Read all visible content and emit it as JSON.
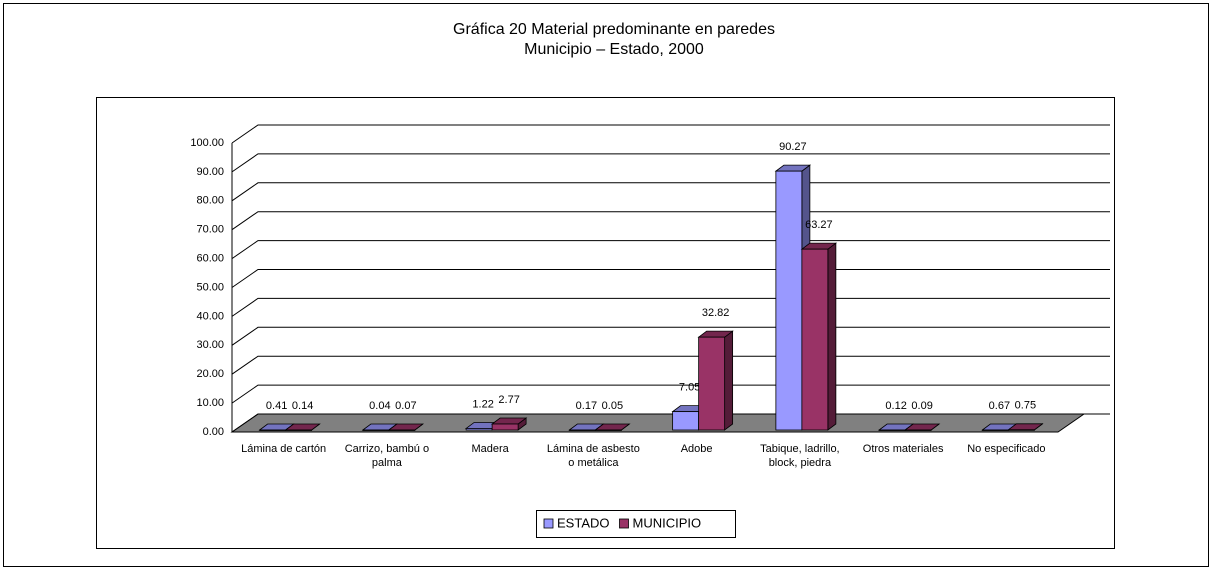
{
  "chart_data": {
    "type": "bar3d",
    "title": "Gráfica 20 Material predominante en paredes",
    "subtitle": "Municipio – Estado, 2000",
    "categories": [
      "Lámina de cartón",
      "Carrizo, bambú o palma",
      "Madera",
      "Lámina de asbesto o metálica",
      "Adobe",
      "Tabique, ladrillo, block, piedra",
      "Otros materiales",
      "No especificado"
    ],
    "series": [
      {
        "name": "ESTADO",
        "color": "#9999ff",
        "values": [
          0.41,
          0.04,
          1.22,
          0.17,
          7.05,
          90.27,
          0.12,
          0.67
        ]
      },
      {
        "name": "MUNICIPIO",
        "color": "#993366",
        "values": [
          0.14,
          0.07,
          2.77,
          0.05,
          32.82,
          63.27,
          0.09,
          0.75
        ]
      }
    ],
    "ylim": [
      0,
      100
    ],
    "yticks": [
      {
        "value": 0,
        "label": "0.00"
      },
      {
        "value": 10,
        "label": "10.00"
      },
      {
        "value": 20,
        "label": "20.00"
      },
      {
        "value": 30,
        "label": "30.00"
      },
      {
        "value": 40,
        "label": "40.00"
      },
      {
        "value": 50,
        "label": "50.00"
      },
      {
        "value": 60,
        "label": "60.00"
      },
      {
        "value": 70,
        "label": "70.00"
      },
      {
        "value": 80,
        "label": "80.00"
      },
      {
        "value": 90,
        "label": "90.00"
      },
      {
        "value": 100,
        "label": "100.00"
      }
    ],
    "grid": true,
    "legend": "bottom"
  }
}
